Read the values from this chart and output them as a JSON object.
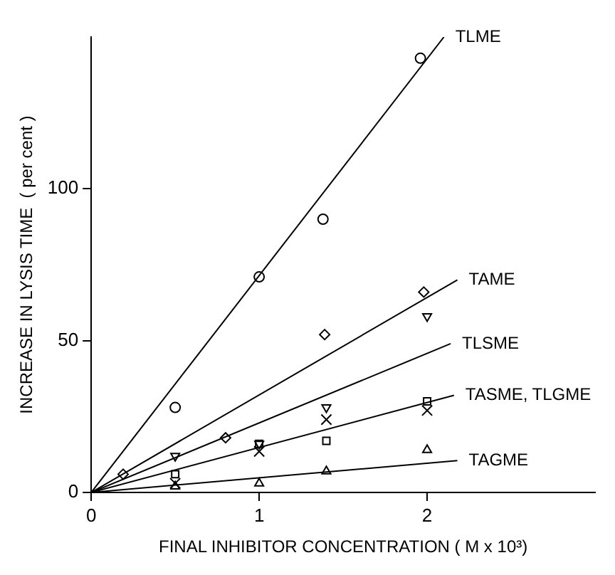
{
  "chart_data": {
    "type": "scatter",
    "xlabel": "FINAL INHIBITOR CONCENTRATION ( M x 10³)",
    "ylabel": "INCREASE IN LYSIS TIME  ( per cent )",
    "xlim": [
      0,
      3
    ],
    "ylim": [
      0,
      150
    ],
    "xticks": [
      0,
      1,
      2
    ],
    "yticks": [
      0,
      50,
      100
    ],
    "grid": false,
    "legend": false,
    "series": [
      {
        "name": "TLME",
        "type": "line",
        "color": "#000000",
        "marker": "none",
        "x": [
          0,
          2.1
        ],
        "values": [
          0,
          150
        ]
      },
      {
        "name": "TAME",
        "type": "line",
        "color": "#000000",
        "marker": "none",
        "x": [
          0,
          2.18
        ],
        "values": [
          0,
          70
        ]
      },
      {
        "name": "TLSME",
        "type": "line",
        "color": "#000000",
        "marker": "none",
        "x": [
          0,
          2.14
        ],
        "values": [
          0,
          49
        ]
      },
      {
        "name": "TASME, TLGME",
        "type": "line",
        "color": "#000000",
        "marker": "none",
        "x": [
          0,
          2.16
        ],
        "values": [
          0,
          32
        ]
      },
      {
        "name": "TAGME",
        "type": "line",
        "color": "#000000",
        "marker": "none",
        "x": [
          0,
          2.18
        ],
        "values": [
          0,
          10.5
        ]
      },
      {
        "type": "scatter",
        "color": "#000000",
        "marker": "circle",
        "x": [
          0.5,
          1,
          1.38,
          1.96
        ],
        "values": [
          28,
          71,
          90,
          143
        ]
      },
      {
        "type": "scatter",
        "color": "#000000",
        "marker": "diamond",
        "x": [
          0.19,
          0.8,
          1.39,
          1.98
        ],
        "values": [
          6,
          18,
          52,
          66
        ]
      },
      {
        "type": "scatter",
        "color": "#000000",
        "marker": "triangle_down",
        "x": [
          0.5,
          1,
          1.4,
          2
        ],
        "values": [
          12,
          16,
          28,
          58
        ]
      },
      {
        "type": "scatter",
        "color": "#000000",
        "marker": "square",
        "x": [
          0.5,
          1,
          1.4,
          2
        ],
        "values": [
          6,
          16,
          17,
          30
        ]
      },
      {
        "type": "scatter",
        "color": "#000000",
        "marker": "cross",
        "x": [
          0.5,
          1,
          1.4,
          2
        ],
        "values": [
          3,
          13.5,
          24,
          27
        ]
      },
      {
        "type": "scatter",
        "color": "#000000",
        "marker": "triangle",
        "x": [
          0.5,
          1,
          1.4,
          2
        ],
        "values": [
          2,
          3,
          7,
          14
        ]
      }
    ]
  }
}
